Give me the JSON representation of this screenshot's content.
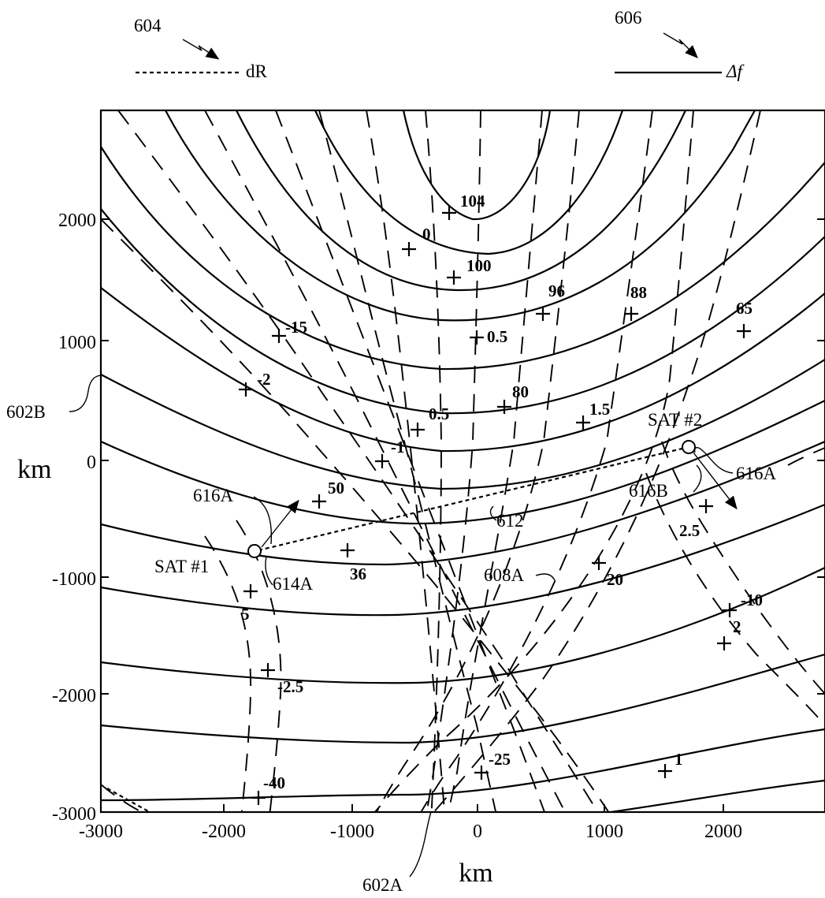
{
  "legend": {
    "dashed": {
      "ref": "604",
      "label": "dR"
    },
    "solid": {
      "ref": "606",
      "label": "Δf"
    }
  },
  "axes": {
    "x_ticks": [
      "-3000",
      "-2000",
      "-1000",
      "0",
      "1000",
      "2000"
    ],
    "y_ticks": [
      "2000",
      "1000",
      "0",
      "-1000",
      "-2000",
      "-3000"
    ],
    "x_unit": "km",
    "y_unit": "km"
  },
  "references": {
    "ref_602A": "602A",
    "ref_602B": "602B",
    "ref_608A": "608A",
    "ref_612": "612",
    "ref_614A": "614A",
    "ref_616A_left": "616A",
    "ref_616A_right": "616A",
    "ref_616B": "616B"
  },
  "satellites": {
    "sat1": {
      "label": "SAT #1"
    },
    "sat2": {
      "label": "SAT #2"
    }
  },
  "markers": [
    {
      "label": "104"
    },
    {
      "label": "0"
    },
    {
      "label": "100"
    },
    {
      "label": "96"
    },
    {
      "label": "88"
    },
    {
      "label": "65"
    },
    {
      "label": "-15"
    },
    {
      "label": "0.5"
    },
    {
      "label": "-2"
    },
    {
      "label": "80"
    },
    {
      "label": "0.5"
    },
    {
      "label": "1.5"
    },
    {
      "label": "-1"
    },
    {
      "label": "50"
    },
    {
      "label": "2.5"
    },
    {
      "label": "36"
    },
    {
      "label": "20"
    },
    {
      "label": "5"
    },
    {
      "label": "-10"
    },
    {
      "label": "2"
    },
    {
      "label": "-2.5"
    },
    {
      "label": "-25"
    },
    {
      "label": "1"
    },
    {
      "label": "-40"
    }
  ]
}
